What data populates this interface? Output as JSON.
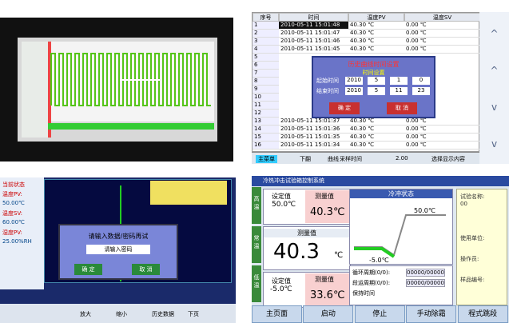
{
  "table_screen": {
    "headers": [
      "序号",
      "时间",
      "温度PV",
      "温度SV"
    ],
    "rows": [
      [
        "1",
        "2010-05-11 15:01:48",
        "40.30 ℃",
        "0.00 ℃"
      ],
      [
        "2",
        "2010-05-11 15:01:47",
        "40.30 ℃",
        "0.00 ℃"
      ],
      [
        "3",
        "2010-05-11 15:01:46",
        "40.30 ℃",
        "0.00 ℃"
      ],
      [
        "4",
        "2010-05-11 15:01:45",
        "40.30 ℃",
        "0.00 ℃"
      ],
      [
        "5"
      ],
      [
        "6"
      ],
      [
        "7"
      ],
      [
        "8"
      ],
      [
        "9"
      ],
      [
        "10"
      ],
      [
        "11"
      ],
      [
        "12"
      ],
      [
        "13",
        "2010-05-11 15:01:37",
        "40.30 ℃",
        "0.00 ℃"
      ],
      [
        "14",
        "2010-05-11 15:01:36",
        "40.30 ℃",
        "0.00 ℃"
      ],
      [
        "15",
        "2010-05-11 15:01:35",
        "40.30 ℃",
        "0.00 ℃"
      ],
      [
        "16",
        "2010-05-11 15:01:34",
        "40.30 ℃",
        "0.00 ℃"
      ]
    ],
    "dialog": {
      "title": "历史曲线时间设置",
      "subtitle": "时间设置",
      "start_label": "起始时间",
      "end_label": "结束时间",
      "start": [
        "2010",
        "5",
        "1",
        "0"
      ],
      "end": [
        "2010",
        "5",
        "11",
        "23"
      ],
      "ok": "确 定",
      "cancel": "取 消"
    },
    "toolbar": [
      "主菜单",
      "下翻",
      "曲线",
      "采样时间",
      "2.00",
      "选择显示内容"
    ],
    "scroll": [
      "^",
      "^",
      "v",
      "v"
    ]
  },
  "curve_screen": {
    "status": [
      "当前状态",
      "温度PV:",
      "50.00℃",
      "温度SV:",
      "60.00℃",
      "湿度PV:",
      "25.00%RH"
    ],
    "dialog": {
      "title": "请输入数据/密码再试",
      "input": "请输入密码",
      "ok": "确 定",
      "cancel": "取 消"
    },
    "toolbar": [
      "放大",
      "缩小",
      "历史数据",
      "下页"
    ]
  },
  "main_screen": {
    "title": "冷热冲击试验箱控制系统",
    "tabs": [
      "高温",
      "常温",
      "低温"
    ],
    "high": {
      "set_label": "设定值",
      "set": "50.0℃",
      "meas_label": "测量值",
      "meas": "40.3℃"
    },
    "center": {
      "meas_label": "测量值",
      "meas": "40.3",
      "unit": "℃"
    },
    "low": {
      "set_label": "设定值",
      "set": "-5.0℃",
      "meas_label": "测量值",
      "meas": "33.6℃"
    },
    "state": {
      "title": "冷冲状态",
      "high": "50.0℃",
      "low": "-5.0℃"
    },
    "cycle": [
      "循环周期(0/0):",
      "00000/00000",
      "段运周期(0/0):",
      "00000/00000",
      "保持时间"
    ],
    "info": [
      "试验名称:",
      "00",
      "使用单位:",
      "操作员:",
      "样品编号:"
    ],
    "buttons": [
      "主页面",
      "启动",
      "停止",
      "手动除霜",
      "程式跳段"
    ]
  }
}
